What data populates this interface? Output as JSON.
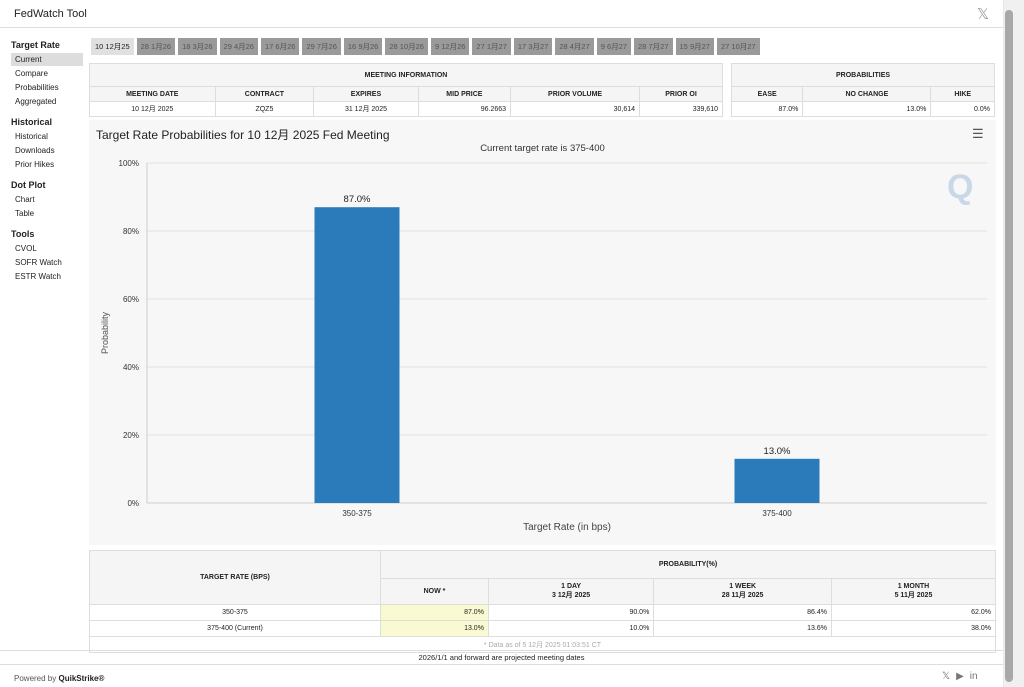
{
  "window": {
    "title": "FedWatch Tool",
    "close_icon": "x-logo-icon"
  },
  "sidebar": [
    {
      "heading": "Target Rate",
      "items": [
        "Current",
        "Compare",
        "Probabilities",
        "Aggregated"
      ],
      "selected": 0
    },
    {
      "heading": "Historical",
      "items": [
        "Historical",
        "Downloads",
        "Prior Hikes"
      ]
    },
    {
      "heading": "Dot Plot",
      "items": [
        "Chart",
        "Table"
      ]
    },
    {
      "heading": "Tools",
      "items": [
        "CVOL",
        "SOFR Watch",
        "ESTR Watch"
      ]
    }
  ],
  "tabs": [
    "10 12月25",
    "28 1月26",
    "18 3月26",
    "29 4月26",
    "17 6月26",
    "29 7月26",
    "16 9月26",
    "28 10月26",
    "9 12月26",
    "27 1月27",
    "17 3月27",
    "28 4月27",
    "9 6月27",
    "28 7月27",
    "15 9月27",
    "27 10月27"
  ],
  "meeting_info": {
    "title": "MEETING INFORMATION",
    "headers": [
      "MEETING DATE",
      "CONTRACT",
      "EXPIRES",
      "MID PRICE",
      "PRIOR VOLUME",
      "PRIOR OI"
    ],
    "row": [
      "10 12月 2025",
      "ZQZ5",
      "31 12月 2025",
      "96.2663",
      "30,614",
      "339,610"
    ]
  },
  "probabilities": {
    "title": "PROBABILITIES",
    "headers": [
      "EASE",
      "NO CHANGE",
      "HIKE"
    ],
    "row": [
      "87.0%",
      "13.0%",
      "0.0%"
    ]
  },
  "chart_data": {
    "type": "bar",
    "title": "Target Rate Probabilities for 10 12月 2025 Fed Meeting",
    "subtitle": "Current target rate is 375-400",
    "xlabel": "Target Rate (in bps)",
    "ylabel": "Probability",
    "categories": [
      "350-375",
      "375-400"
    ],
    "values": [
      87.0,
      13.0
    ],
    "data_labels": [
      "87.0%",
      "13.0%"
    ],
    "ylim": [
      0,
      100
    ],
    "yticks": [
      "0%",
      "20%",
      "40%",
      "60%",
      "80%",
      "100%"
    ],
    "color": "#2b7bba",
    "grid": true
  },
  "bottom_table": {
    "rate_header": "TARGET RATE (BPS)",
    "prob_header": "PROBABILITY(%)",
    "cols": [
      {
        "l1": "NOW *",
        "l2": ""
      },
      {
        "l1": "1 DAY",
        "l2": "3 12月 2025"
      },
      {
        "l1": "1 WEEK",
        "l2": "28 11月 2025"
      },
      {
        "l1": "1 MONTH",
        "l2": "5 11月 2025"
      }
    ],
    "rows": [
      [
        "350-375",
        "87.0%",
        "90.0%",
        "86.4%",
        "62.0%"
      ],
      [
        "375-400 (Current)",
        "13.0%",
        "10.0%",
        "13.6%",
        "38.0%"
      ]
    ],
    "note": "* Data as of 5 12月 2025 01:03:51 CT"
  },
  "footer": {
    "projected": "2026/1/1 and forward are projected meeting dates",
    "powered": "Powered by",
    "brand": "QuikStrike®"
  }
}
